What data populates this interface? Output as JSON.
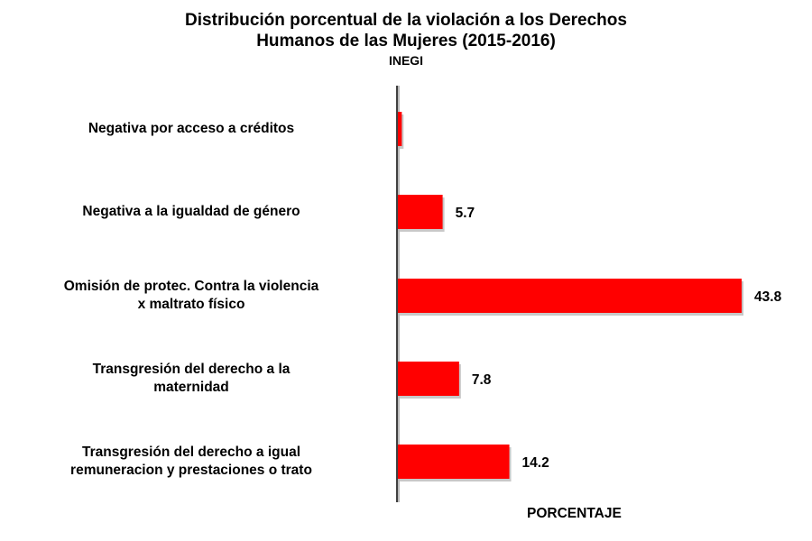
{
  "chart_data": {
    "type": "bar",
    "orientation": "horizontal",
    "title": "Distribución porcentual de la violación a los Derechos Humanos de las Mujeres (2015-2016)",
    "title_lines": [
      "Distribución porcentual de la violación a los Derechos",
      "Humanos de las Mujeres (2015-2016)"
    ],
    "subtitle": "INEGI",
    "xlabel": "PORCENTAJE",
    "ylabel": "",
    "categories": [
      [
        "Negativa por acceso a créditos"
      ],
      [
        "Negativa a la igualdad de género"
      ],
      [
        "Omisión de protec. Contra la violencia",
        "x maltrato físico"
      ],
      [
        "Transgresión del derecho a la",
        "maternidad"
      ],
      [
        "Transgresión del derecho a igual",
        "remuneracion y prestaciones o trato"
      ]
    ],
    "values": [
      0.5,
      5.7,
      43.8,
      7.8,
      14.2
    ],
    "data_labels": [
      "",
      "5.7",
      "43.8",
      "7.8",
      "14.2"
    ],
    "xlim": [
      0,
      50
    ],
    "bar_color": "#ff0000",
    "grid": false,
    "legend": "none"
  }
}
